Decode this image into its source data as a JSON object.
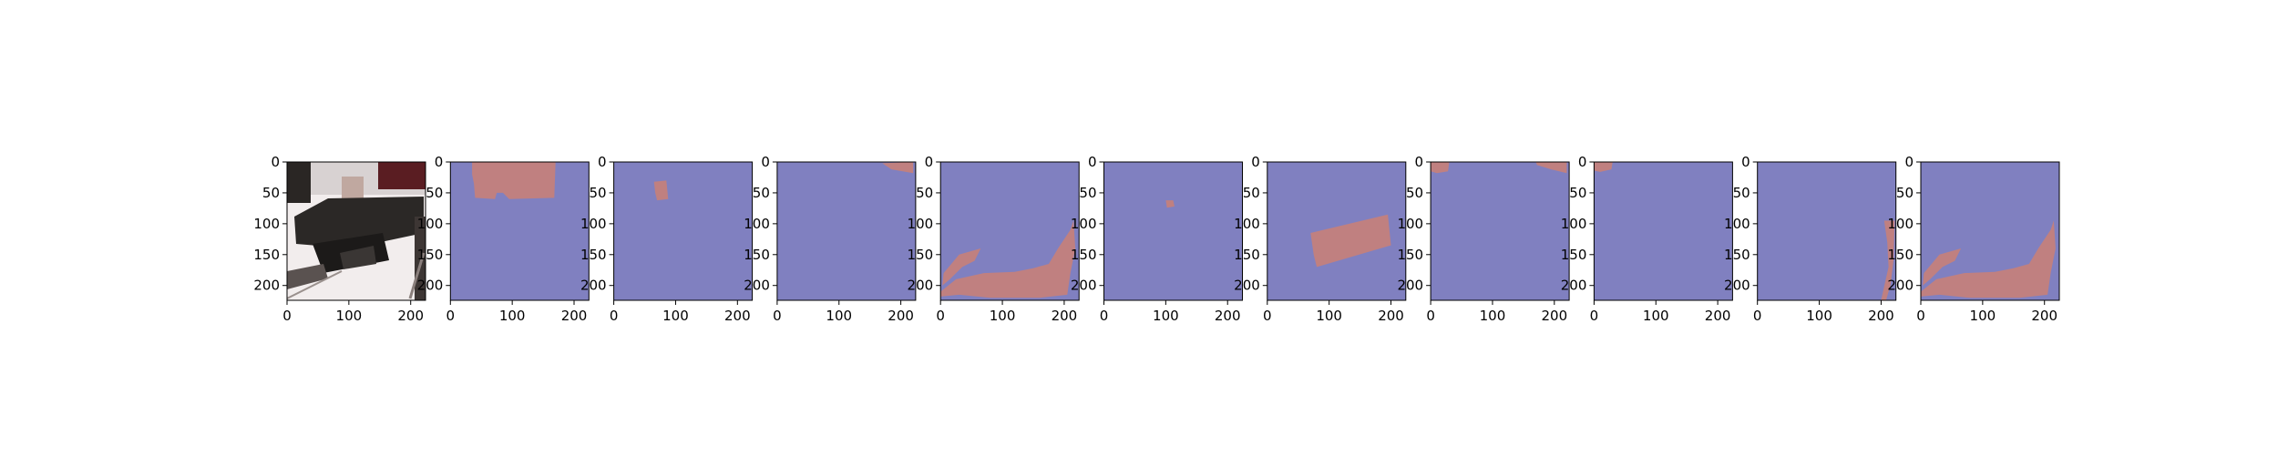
{
  "colors": {
    "background_class": "#8080c0",
    "foreground_class": "#c08080",
    "axis": "#000000"
  },
  "chart_data": {
    "type": "heatmap",
    "title": "",
    "xlabel": "",
    "ylabel": "",
    "image_size": [
      224,
      224
    ],
    "xlim": [
      0,
      224
    ],
    "ylim": [
      224,
      0
    ],
    "xticks": [
      0,
      100,
      200
    ],
    "yticks": [
      0,
      50,
      100,
      150,
      200
    ],
    "panels": [
      {
        "kind": "photo",
        "description_icon": "photo-icon"
      },
      {
        "kind": "mask",
        "regions": [
          [
            [
              35,
              0
            ],
            [
              170,
              0
            ],
            [
              168,
              58
            ],
            [
              95,
              60
            ],
            [
              85,
              50
            ],
            [
              75,
              50
            ],
            [
              72,
              60
            ],
            [
              40,
              58
            ],
            [
              38,
              35
            ],
            [
              35,
              20
            ]
          ]
        ]
      },
      {
        "kind": "mask",
        "regions": [
          [
            [
              65,
              32
            ],
            [
              85,
              30
            ],
            [
              88,
              60
            ],
            [
              70,
              62
            ],
            [
              67,
              50
            ]
          ]
        ]
      },
      {
        "kind": "mask",
        "regions": [
          [
            [
              170,
              2
            ],
            [
              220,
              0
            ],
            [
              220,
              18
            ],
            [
              185,
              12
            ]
          ]
        ]
      },
      {
        "kind": "mask",
        "regions": [
          [
            [
              5,
              180
            ],
            [
              30,
              150
            ],
            [
              65,
              140
            ],
            [
              55,
              160
            ],
            [
              35,
              170
            ],
            [
              15,
              190
            ],
            [
              3,
              200
            ]
          ],
          [
            [
              0,
              210
            ],
            [
              25,
              190
            ],
            [
              70,
              180
            ],
            [
              120,
              178
            ],
            [
              150,
              172
            ],
            [
              175,
              165
            ],
            [
              190,
              140
            ],
            [
              210,
              110
            ],
            [
              215,
              95
            ],
            [
              218,
              140
            ],
            [
              210,
              180
            ],
            [
              205,
              215
            ],
            [
              160,
              220
            ],
            [
              80,
              220
            ],
            [
              30,
              215
            ],
            [
              0,
              218
            ]
          ]
        ]
      },
      {
        "kind": "mask",
        "regions": [
          [
            [
              100,
              62
            ],
            [
              112,
              62
            ],
            [
              114,
              72
            ],
            [
              102,
              74
            ]
          ]
        ]
      },
      {
        "kind": "mask",
        "regions": [
          [
            [
              70,
              115
            ],
            [
              195,
              85
            ],
            [
              200,
              135
            ],
            [
              80,
              170
            ],
            [
              75,
              150
            ]
          ]
        ]
      },
      {
        "kind": "mask",
        "regions": [
          [
            [
              0,
              0
            ],
            [
              30,
              0
            ],
            [
              28,
              15
            ],
            [
              10,
              18
            ],
            [
              0,
              15
            ]
          ],
          [
            [
              170,
              0
            ],
            [
              220,
              0
            ],
            [
              220,
              18
            ],
            [
              195,
              12
            ],
            [
              172,
              5
            ]
          ]
        ]
      },
      {
        "kind": "mask",
        "regions": [
          [
            [
              0,
              0
            ],
            [
              30,
              0
            ],
            [
              28,
              12
            ],
            [
              10,
              16
            ],
            [
              0,
              14
            ]
          ]
        ]
      },
      {
        "kind": "mask",
        "regions": [
          [
            [
              205,
              95
            ],
            [
              222,
              95
            ],
            [
              220,
              160
            ],
            [
              215,
              200
            ],
            [
              208,
              224
            ],
            [
              200,
              224
            ],
            [
              212,
              170
            ],
            [
              210,
              130
            ]
          ]
        ]
      },
      {
        "kind": "mask",
        "regions": [
          [
            [
              5,
              180
            ],
            [
              30,
              150
            ],
            [
              65,
              140
            ],
            [
              55,
              160
            ],
            [
              35,
              170
            ],
            [
              15,
              190
            ],
            [
              3,
              200
            ]
          ],
          [
            [
              0,
              210
            ],
            [
              25,
              190
            ],
            [
              70,
              180
            ],
            [
              120,
              178
            ],
            [
              150,
              172
            ],
            [
              175,
              165
            ],
            [
              190,
              140
            ],
            [
              210,
              110
            ],
            [
              215,
              95
            ],
            [
              218,
              140
            ],
            [
              210,
              180
            ],
            [
              205,
              215
            ],
            [
              160,
              220
            ],
            [
              80,
              220
            ],
            [
              30,
              215
            ],
            [
              0,
              218
            ]
          ]
        ]
      }
    ]
  }
}
